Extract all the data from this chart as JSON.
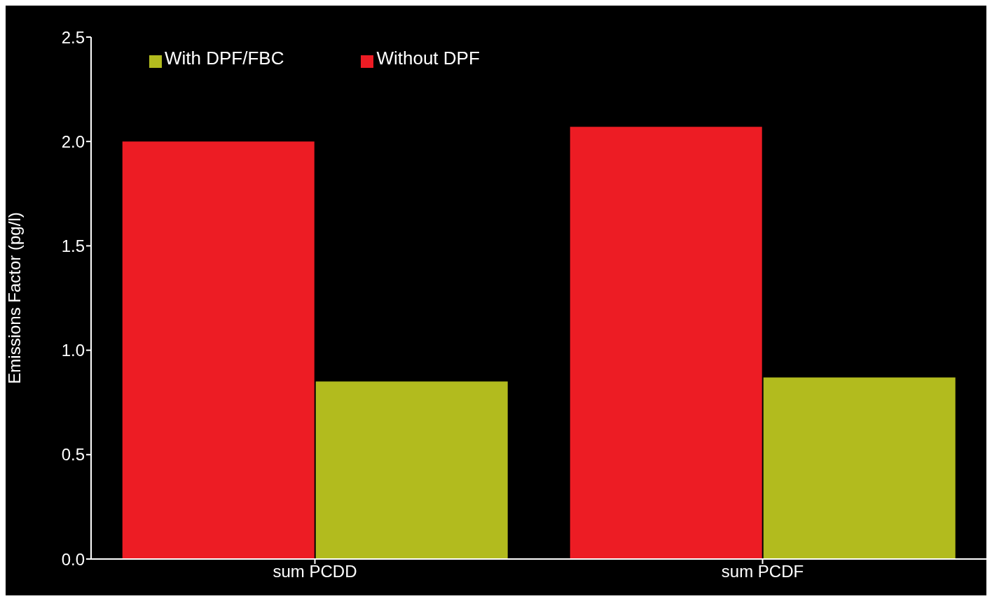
{
  "chart_data": {
    "type": "bar",
    "categories": [
      "sum PCDD",
      "sum PCDF"
    ],
    "series": [
      {
        "name": "Without DPF",
        "color": "#ed1c24",
        "values": [
          2.0,
          2.07
        ]
      },
      {
        "name": "With DPF/FBC",
        "color": "#b2bb1e",
        "values": [
          0.85,
          0.87
        ]
      }
    ],
    "ylabel": "Emissions Factor (pg/l)",
    "ylim": [
      0,
      2.5
    ],
    "yticks": [
      {
        "value": 0,
        "label": "0.0"
      },
      {
        "value": 0.5,
        "label": "0.5"
      },
      {
        "value": 1,
        "label": "1.0"
      },
      {
        "value": 1.5,
        "label": "1.5"
      },
      {
        "value": 2,
        "label": "2.0"
      },
      {
        "value": 2.5,
        "label": "2.5"
      }
    ],
    "grid": false,
    "legend": "top left"
  }
}
